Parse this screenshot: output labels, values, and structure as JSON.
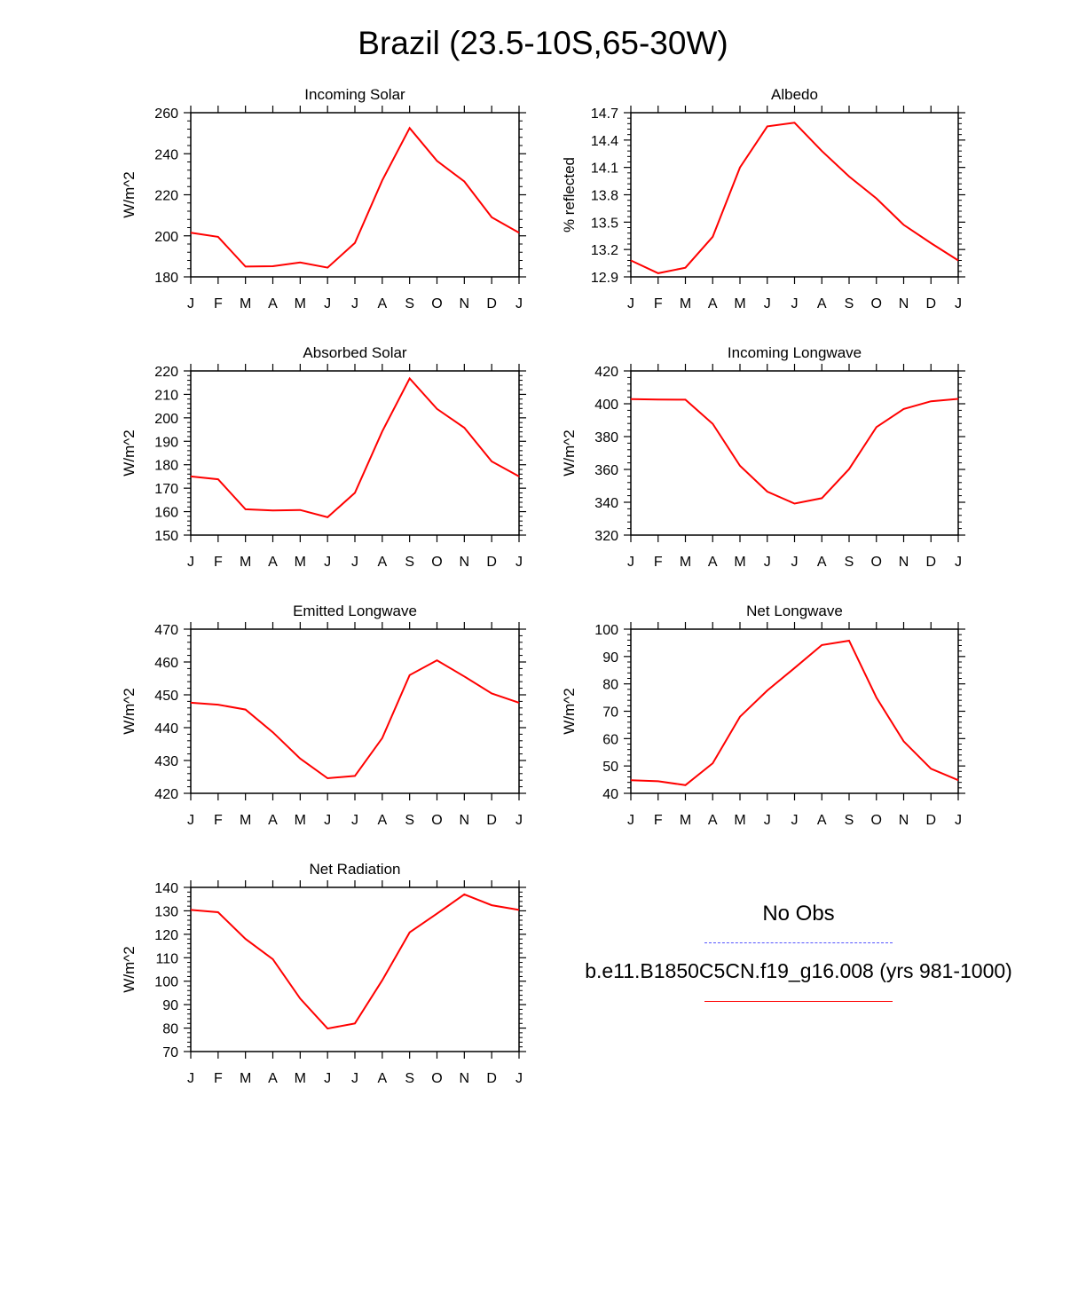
{
  "page_title": "Brazil (23.5-10S,65-30W)",
  "legend": {
    "obs_label": "No Obs",
    "obs_color": "#5555ff",
    "case_label": "b.e11.B1850C5CN.f19_g16.008 (yrs 981-1000)",
    "case_color": "#ff0000"
  },
  "chart_data": [
    {
      "type": "line",
      "title": "Incoming Solar",
      "ylabel": "W/m^2",
      "categories": [
        "J",
        "F",
        "M",
        "A",
        "M",
        "J",
        "J",
        "A",
        "S",
        "O",
        "N",
        "D",
        "J"
      ],
      "ylim": [
        180,
        260
      ],
      "yticks": [
        "180",
        "200",
        "220",
        "240",
        "260"
      ],
      "series": [
        {
          "color": "#ff0000",
          "values": [
            201.5,
            199.5,
            185,
            185.2,
            187,
            184.5,
            196.5,
            227,
            252.5,
            236.5,
            226.5,
            209,
            201.5
          ]
        }
      ]
    },
    {
      "type": "line",
      "title": "Albedo",
      "ylabel": "% reflected",
      "categories": [
        "J",
        "F",
        "M",
        "A",
        "M",
        "J",
        "J",
        "A",
        "S",
        "O",
        "N",
        "D",
        "J"
      ],
      "ylim": [
        12.9,
        14.7
      ],
      "yticks": [
        "12.9",
        "13.2",
        "13.5",
        "13.8",
        "14.1",
        "14.4",
        "14.7"
      ],
      "series": [
        {
          "color": "#ff0000",
          "values": [
            13.08,
            12.94,
            13.0,
            13.34,
            14.1,
            14.55,
            14.59,
            14.28,
            14.0,
            13.76,
            13.47,
            13.27,
            13.08
          ]
        }
      ]
    },
    {
      "type": "line",
      "title": "Absorbed Solar",
      "ylabel": "W/m^2",
      "categories": [
        "J",
        "F",
        "M",
        "A",
        "M",
        "J",
        "J",
        "A",
        "S",
        "O",
        "N",
        "D",
        "J"
      ],
      "ylim": [
        150,
        220
      ],
      "yticks": [
        "150",
        "160",
        "170",
        "180",
        "190",
        "200",
        "210",
        "220"
      ],
      "series": [
        {
          "color": "#ff0000",
          "values": [
            175,
            173.8,
            161,
            160.5,
            160.7,
            157.6,
            168,
            194.2,
            216.8,
            203.8,
            195.8,
            181.4,
            175
          ]
        }
      ]
    },
    {
      "type": "line",
      "title": "Incoming Longwave",
      "ylabel": "W/m^2",
      "categories": [
        "J",
        "F",
        "M",
        "A",
        "M",
        "J",
        "J",
        "A",
        "S",
        "O",
        "N",
        "D",
        "J"
      ],
      "ylim": [
        320,
        420
      ],
      "yticks": [
        "320",
        "340",
        "360",
        "380",
        "400",
        "420"
      ],
      "series": [
        {
          "color": "#ff0000",
          "values": [
            402.8,
            402.6,
            402.5,
            387.8,
            362.2,
            346.5,
            339.2,
            342.5,
            360.2,
            385.8,
            396.8,
            401.5,
            403
          ]
        }
      ]
    },
    {
      "type": "line",
      "title": "Emitted Longwave",
      "ylabel": "W/m^2",
      "categories": [
        "J",
        "F",
        "M",
        "A",
        "M",
        "J",
        "J",
        "A",
        "S",
        "O",
        "N",
        "D",
        "J"
      ],
      "ylim": [
        420,
        470
      ],
      "yticks": [
        "420",
        "430",
        "440",
        "450",
        "460",
        "470"
      ],
      "series": [
        {
          "color": "#ff0000",
          "values": [
            447.6,
            447.0,
            445.5,
            438.6,
            430.6,
            424.6,
            425.3,
            436.8,
            456.0,
            460.5,
            455.6,
            450.4,
            447.6
          ]
        }
      ]
    },
    {
      "type": "line",
      "title": "Net Longwave",
      "ylabel": "W/m^2",
      "categories": [
        "J",
        "F",
        "M",
        "A",
        "M",
        "J",
        "J",
        "A",
        "S",
        "O",
        "N",
        "D",
        "J"
      ],
      "ylim": [
        40,
        100
      ],
      "yticks": [
        "40",
        "50",
        "60",
        "70",
        "80",
        "90",
        "100"
      ],
      "series": [
        {
          "color": "#ff0000",
          "values": [
            44.8,
            44.4,
            43.0,
            51.0,
            68.0,
            77.6,
            85.8,
            94.2,
            95.8,
            75.0,
            59.0,
            49.0,
            44.8
          ]
        }
      ]
    },
    {
      "type": "line",
      "title": "Net Radiation",
      "ylabel": "W/m^2",
      "categories": [
        "J",
        "F",
        "M",
        "A",
        "M",
        "J",
        "J",
        "A",
        "S",
        "O",
        "N",
        "D",
        "J"
      ],
      "ylim": [
        70,
        140
      ],
      "yticks": [
        "70",
        "80",
        "90",
        "100",
        "110",
        "120",
        "130",
        "140"
      ],
      "series": [
        {
          "color": "#ff0000",
          "values": [
            130.4,
            129.4,
            118.0,
            109.4,
            92.6,
            79.8,
            82.0,
            100.4,
            120.8,
            128.8,
            137.0,
            132.4,
            130.4
          ]
        }
      ]
    }
  ]
}
